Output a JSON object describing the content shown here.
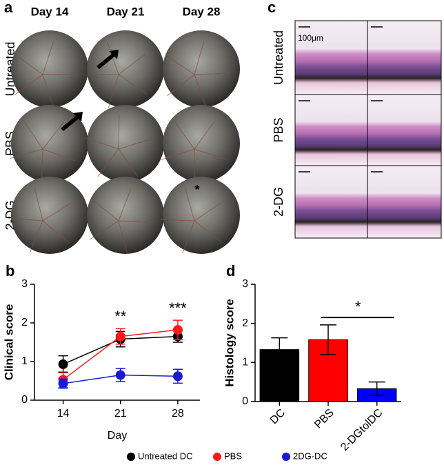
{
  "panels": {
    "a": {
      "label": "a",
      "columns": [
        "Day 14",
        "Day 21",
        "Day 28"
      ],
      "rows": [
        "Untreated",
        "PBS",
        "2-DG"
      ],
      "annotation": "*"
    },
    "c": {
      "label": "c",
      "rows": [
        "Untreated",
        "PBS",
        "2-DG"
      ],
      "scale_bar": "100μm"
    }
  },
  "chart_data": [
    {
      "type": "line",
      "panel_label": "b",
      "x_label": "Day",
      "y_label": "Clinical score",
      "x": [
        14,
        21,
        28
      ],
      "xlim": [
        10.5,
        30.7
      ],
      "xticks": [
        14,
        21,
        28
      ],
      "ylim": [
        0,
        3
      ],
      "yticks": [
        0,
        1,
        2,
        3
      ],
      "series": [
        {
          "name": "Untreated DC",
          "color": "#000000",
          "values": [
            0.93,
            1.58,
            1.65
          ],
          "errors": [
            0.22,
            0.2,
            0.15
          ]
        },
        {
          "name": "PBS",
          "color": "#ff1a1a",
          "values": [
            0.53,
            1.65,
            1.82
          ],
          "errors": [
            0.2,
            0.2,
            0.25
          ]
        },
        {
          "name": "2DG-DC",
          "color": "#1a1ad6",
          "values": [
            0.43,
            0.65,
            0.62
          ],
          "errors": [
            0.12,
            0.17,
            0.18
          ]
        }
      ],
      "annotations": [
        {
          "text": "**",
          "x": 21
        },
        {
          "text": "***",
          "x": 28
        }
      ],
      "legend": "bottom"
    },
    {
      "type": "bar",
      "panel_label": "d",
      "y_label": "Histology score",
      "categories": [
        "DC",
        "PBS",
        "2-DGtolDC"
      ],
      "values": [
        1.33,
        1.58,
        0.33
      ],
      "errors": [
        0.3,
        0.38,
        0.17
      ],
      "colors": [
        "#000000",
        "#ff0000",
        "#0000ff"
      ],
      "ylim": [
        0,
        3
      ],
      "yticks": [
        0,
        1,
        2,
        3
      ],
      "significance": "*"
    }
  ]
}
